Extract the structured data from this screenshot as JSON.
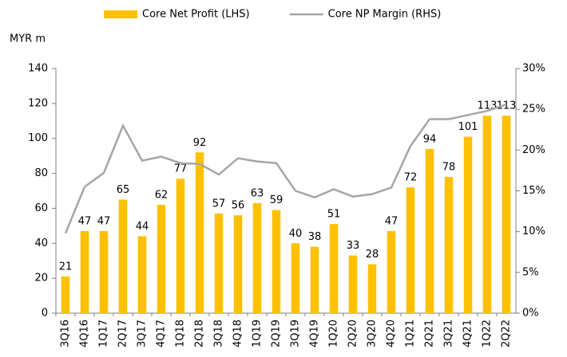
{
  "chart_data": {
    "type": "bar",
    "y_label": "MYR m",
    "categories": [
      "3Q16",
      "4Q16",
      "1Q17",
      "2Q17",
      "3Q17",
      "4Q17",
      "1Q18",
      "2Q18",
      "3Q18",
      "4Q18",
      "1Q19",
      "2Q19",
      "3Q19",
      "4Q19",
      "1Q20",
      "2Q20",
      "3Q20",
      "4Q20",
      "1Q21",
      "2Q21",
      "3Q21",
      "4Q21",
      "1Q22",
      "2Q22"
    ],
    "series": [
      {
        "name": "Core Net Profit (LHS)",
        "color": "#ffc000",
        "type": "bar",
        "values": [
          21,
          47,
          47,
          65,
          44,
          62,
          77,
          92,
          57,
          56,
          63,
          59,
          40,
          38,
          51,
          33,
          28,
          47,
          72,
          94,
          78,
          101,
          113,
          113
        ]
      },
      {
        "name": "Core NP Margin (RHS)",
        "color": "#a6a6a6",
        "type": "line",
        "axis": "y2",
        "values": [
          9.8,
          15.5,
          17.2,
          23,
          18.7,
          19.2,
          18.4,
          18.3,
          17,
          19,
          18.6,
          18.4,
          15,
          14.2,
          15.2,
          14.3,
          14.6,
          15.4,
          20.5,
          23.8,
          23.8,
          24.3,
          24.8,
          25.6
        ]
      }
    ],
    "ylim": [
      0,
      140
    ],
    "yticks": [
      0,
      20,
      40,
      60,
      80,
      100,
      120,
      140
    ],
    "y2lim": [
      0,
      30
    ],
    "y2ticks": [
      {
        "value": 0,
        "label": "0%"
      },
      {
        "value": 5,
        "label": "5%"
      },
      {
        "value": 10,
        "label": "10%"
      },
      {
        "value": 15,
        "label": "15%"
      },
      {
        "value": 20,
        "label": "20%"
      },
      {
        "value": 25,
        "label": "25%"
      },
      {
        "value": 30,
        "label": "30%"
      }
    ],
    "grid": false,
    "legend": "top"
  }
}
